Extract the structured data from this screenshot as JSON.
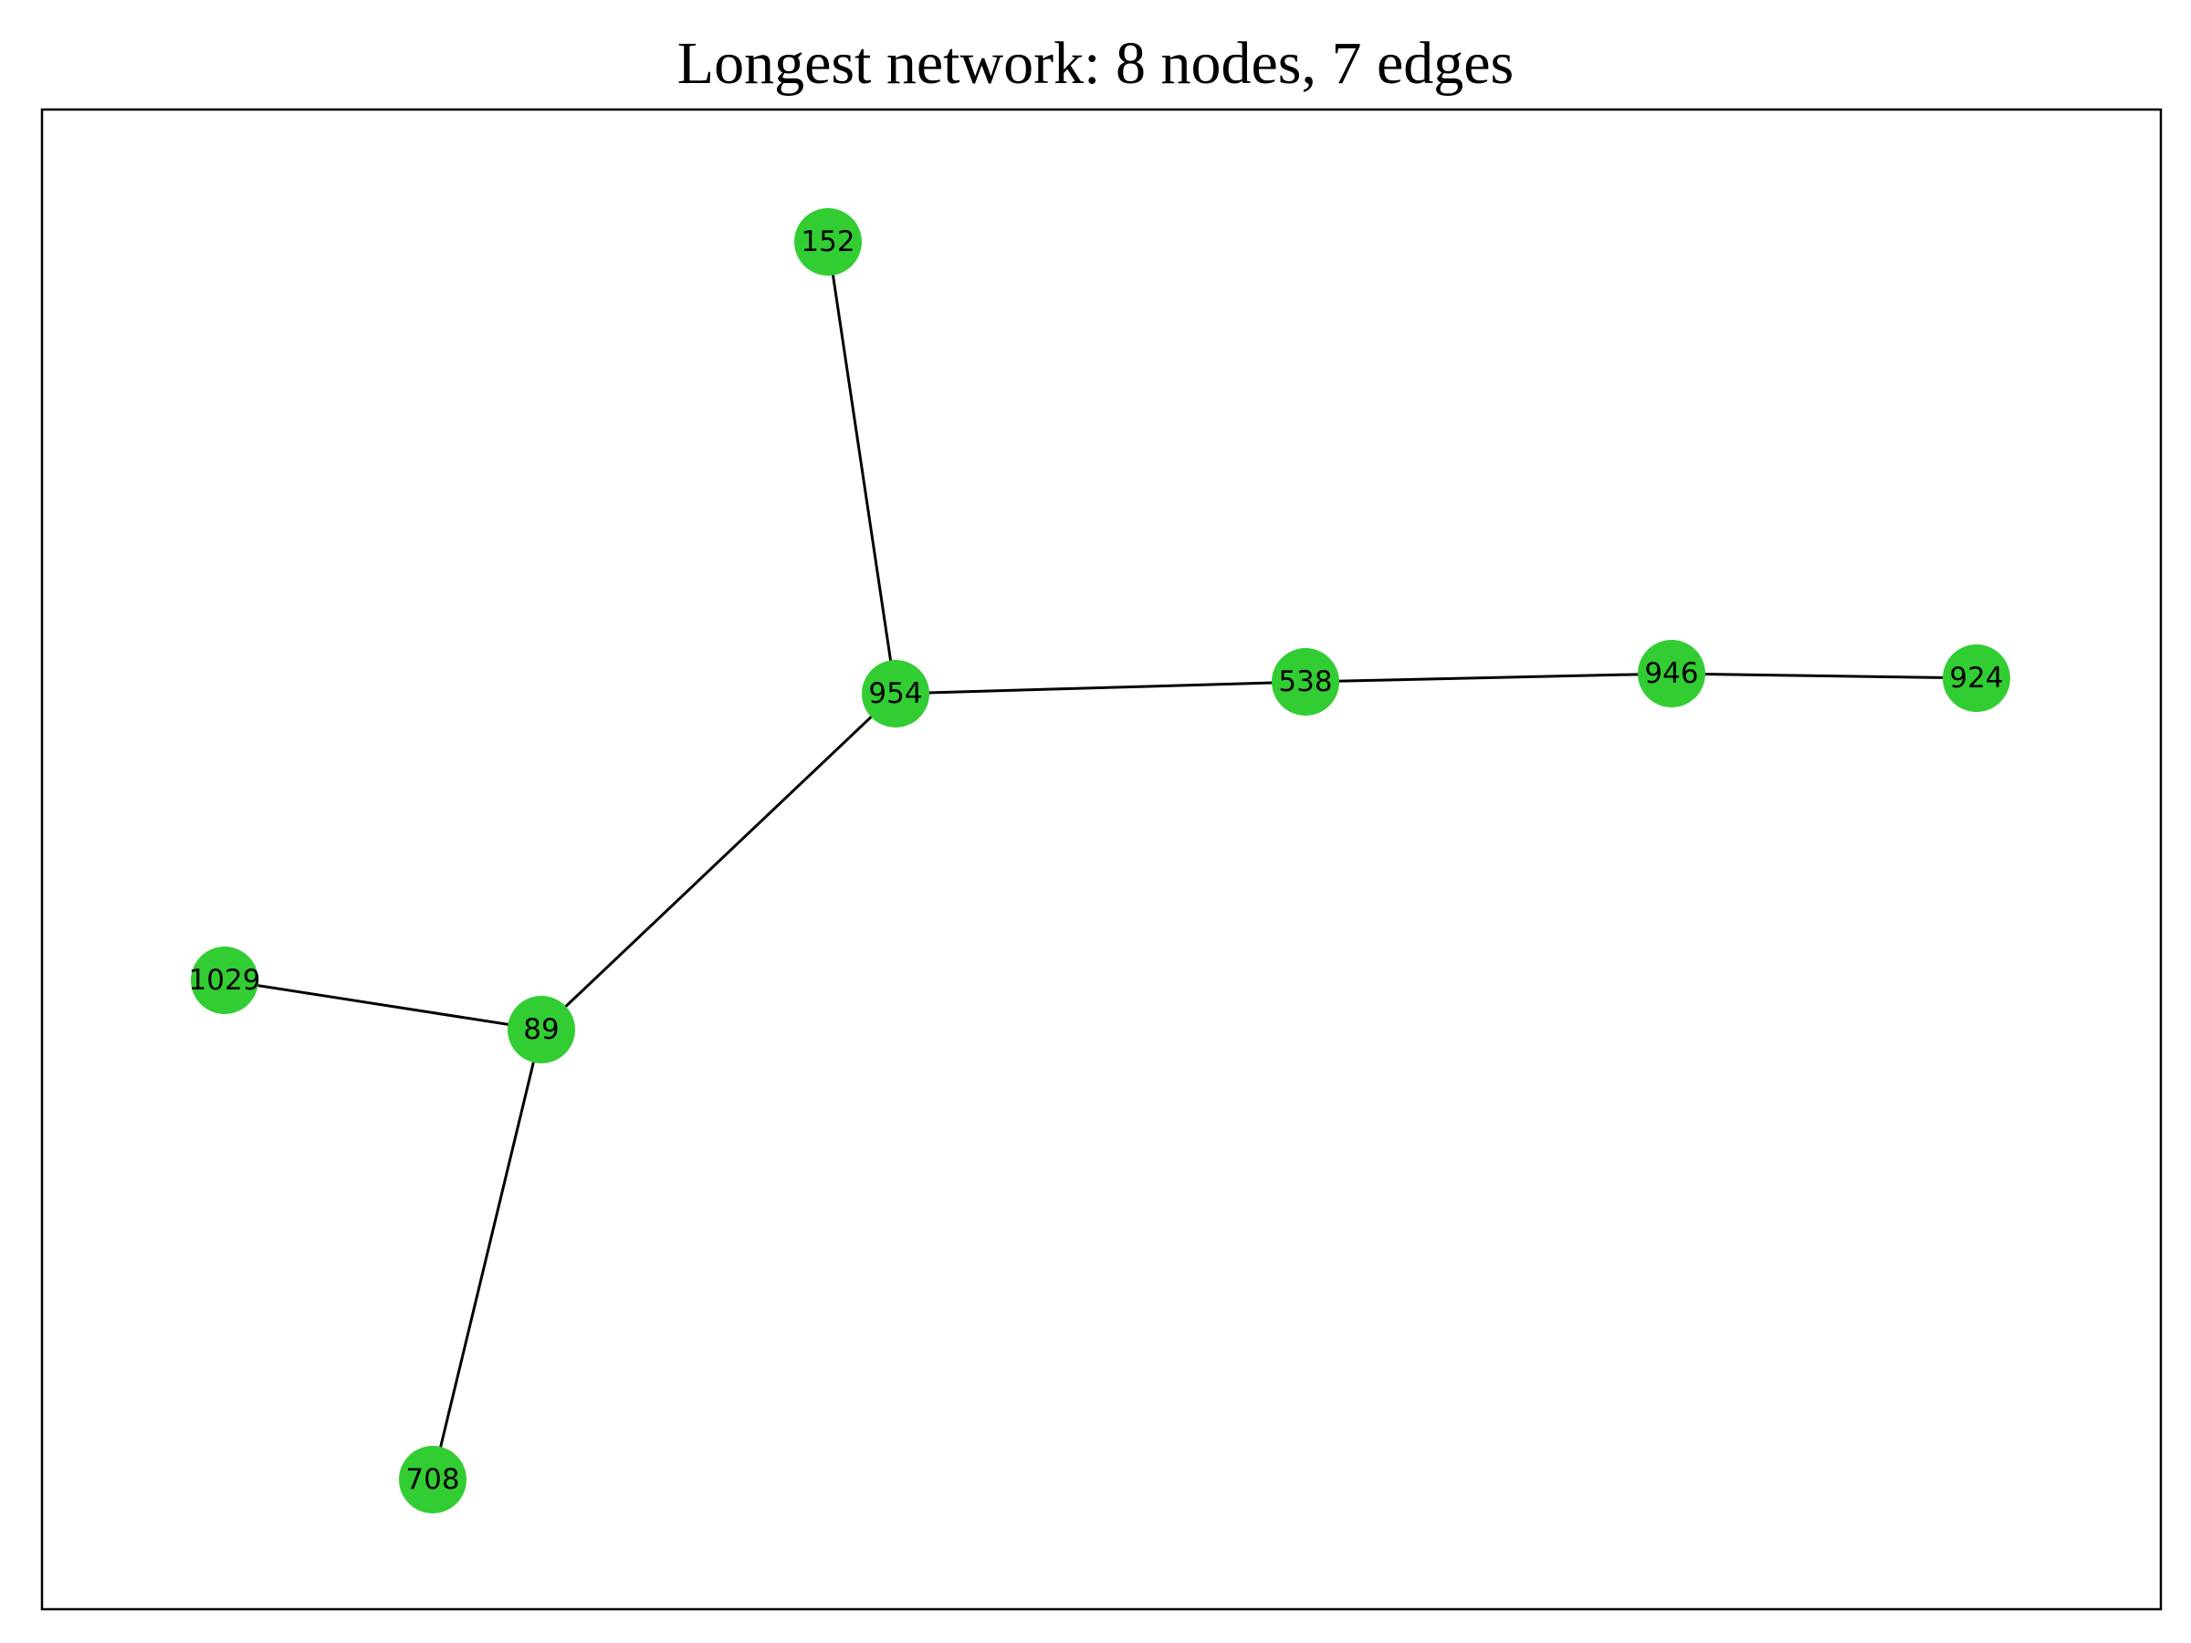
{
  "title": "Longest network: 8 nodes, 7 edges",
  "node_color": "#32cd32",
  "edge_color": "#000000",
  "nodes": [
    {
      "id": "152",
      "label": "152"
    },
    {
      "id": "954",
      "label": "954"
    },
    {
      "id": "538",
      "label": "538"
    },
    {
      "id": "946",
      "label": "946"
    },
    {
      "id": "924",
      "label": "924"
    },
    {
      "id": "1029",
      "label": "1029"
    },
    {
      "id": "89",
      "label": "89"
    },
    {
      "id": "708",
      "label": "708"
    }
  ],
  "edges": [
    {
      "source": "152",
      "target": "954"
    },
    {
      "source": "954",
      "target": "538"
    },
    {
      "source": "538",
      "target": "946"
    },
    {
      "source": "946",
      "target": "924"
    },
    {
      "source": "954",
      "target": "89"
    },
    {
      "source": "89",
      "target": "1029"
    },
    {
      "source": "89",
      "target": "708"
    }
  ]
}
